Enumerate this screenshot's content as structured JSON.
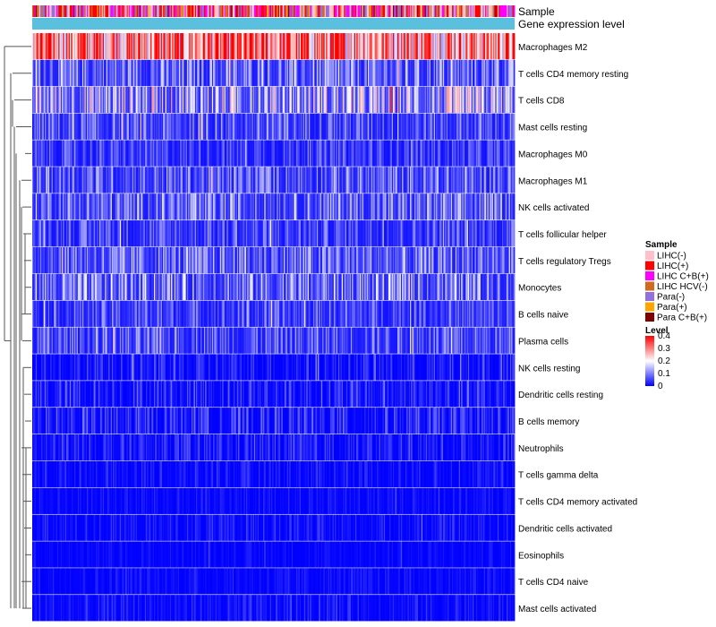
{
  "chart_data": {
    "type": "heatmap",
    "annotation_tracks": [
      {
        "key": "sample",
        "label": "Sample"
      },
      {
        "key": "expression",
        "label": "Gene expression level"
      }
    ],
    "rows": [
      "Macrophages M2",
      "T cells CD4 memory resting",
      "T cells CD8",
      "Mast cells resting",
      "Macrophages M0",
      "Macrophages M1",
      "NK cells activated",
      "T cells follicular helper",
      "T cells regulatory  Tregs",
      "Monocytes",
      "B cells naive",
      "Plasma cells",
      "NK cells resting",
      "Dendritic cells resting",
      "B cells memory",
      "Neutrophils",
      "T cells gamma delta",
      "T cells CD4 memory activated",
      "Dendritic cells activated",
      "Eosinophils",
      "T cells CD4 naive",
      "Mast cells activated"
    ],
    "row_mean_levels": [
      0.3,
      0.1,
      0.16,
      0.08,
      0.06,
      0.09,
      0.1,
      0.07,
      0.1,
      0.11,
      0.07,
      0.08,
      0.03,
      0.04,
      0.04,
      0.03,
      0.02,
      0.015,
      0.02,
      0.01,
      0.015,
      0.02
    ],
    "n_samples": 424,
    "legend_sample": {
      "title": "Sample",
      "items": [
        {
          "label": "LIHC(-)",
          "color": "#ffc0cb"
        },
        {
          "label": "LIHC(+)",
          "color": "#ff0000"
        },
        {
          "label": "LIHC C+B(+)",
          "color": "#ff00ff"
        },
        {
          "label": "LIHC HCV(-)",
          "color": "#d2691e"
        },
        {
          "label": "Para(-)",
          "color": "#9370db"
        },
        {
          "label": "Para(+)",
          "color": "#ffa500"
        },
        {
          "label": "Para C+B(+)",
          "color": "#800000"
        }
      ]
    },
    "legend_level": {
      "title": "Level",
      "ticks": [
        "0.4",
        "0.3",
        "0.2",
        "0.1",
        "0"
      ],
      "tick_values": [
        0.4,
        0.3,
        0.2,
        0.1,
        0
      ],
      "range": [
        0,
        0.4
      ],
      "colors": {
        "low": "#0000ff",
        "mid": "#ffffff",
        "high": "#ff0000"
      }
    },
    "expression_track_color": "#5bc0de"
  }
}
